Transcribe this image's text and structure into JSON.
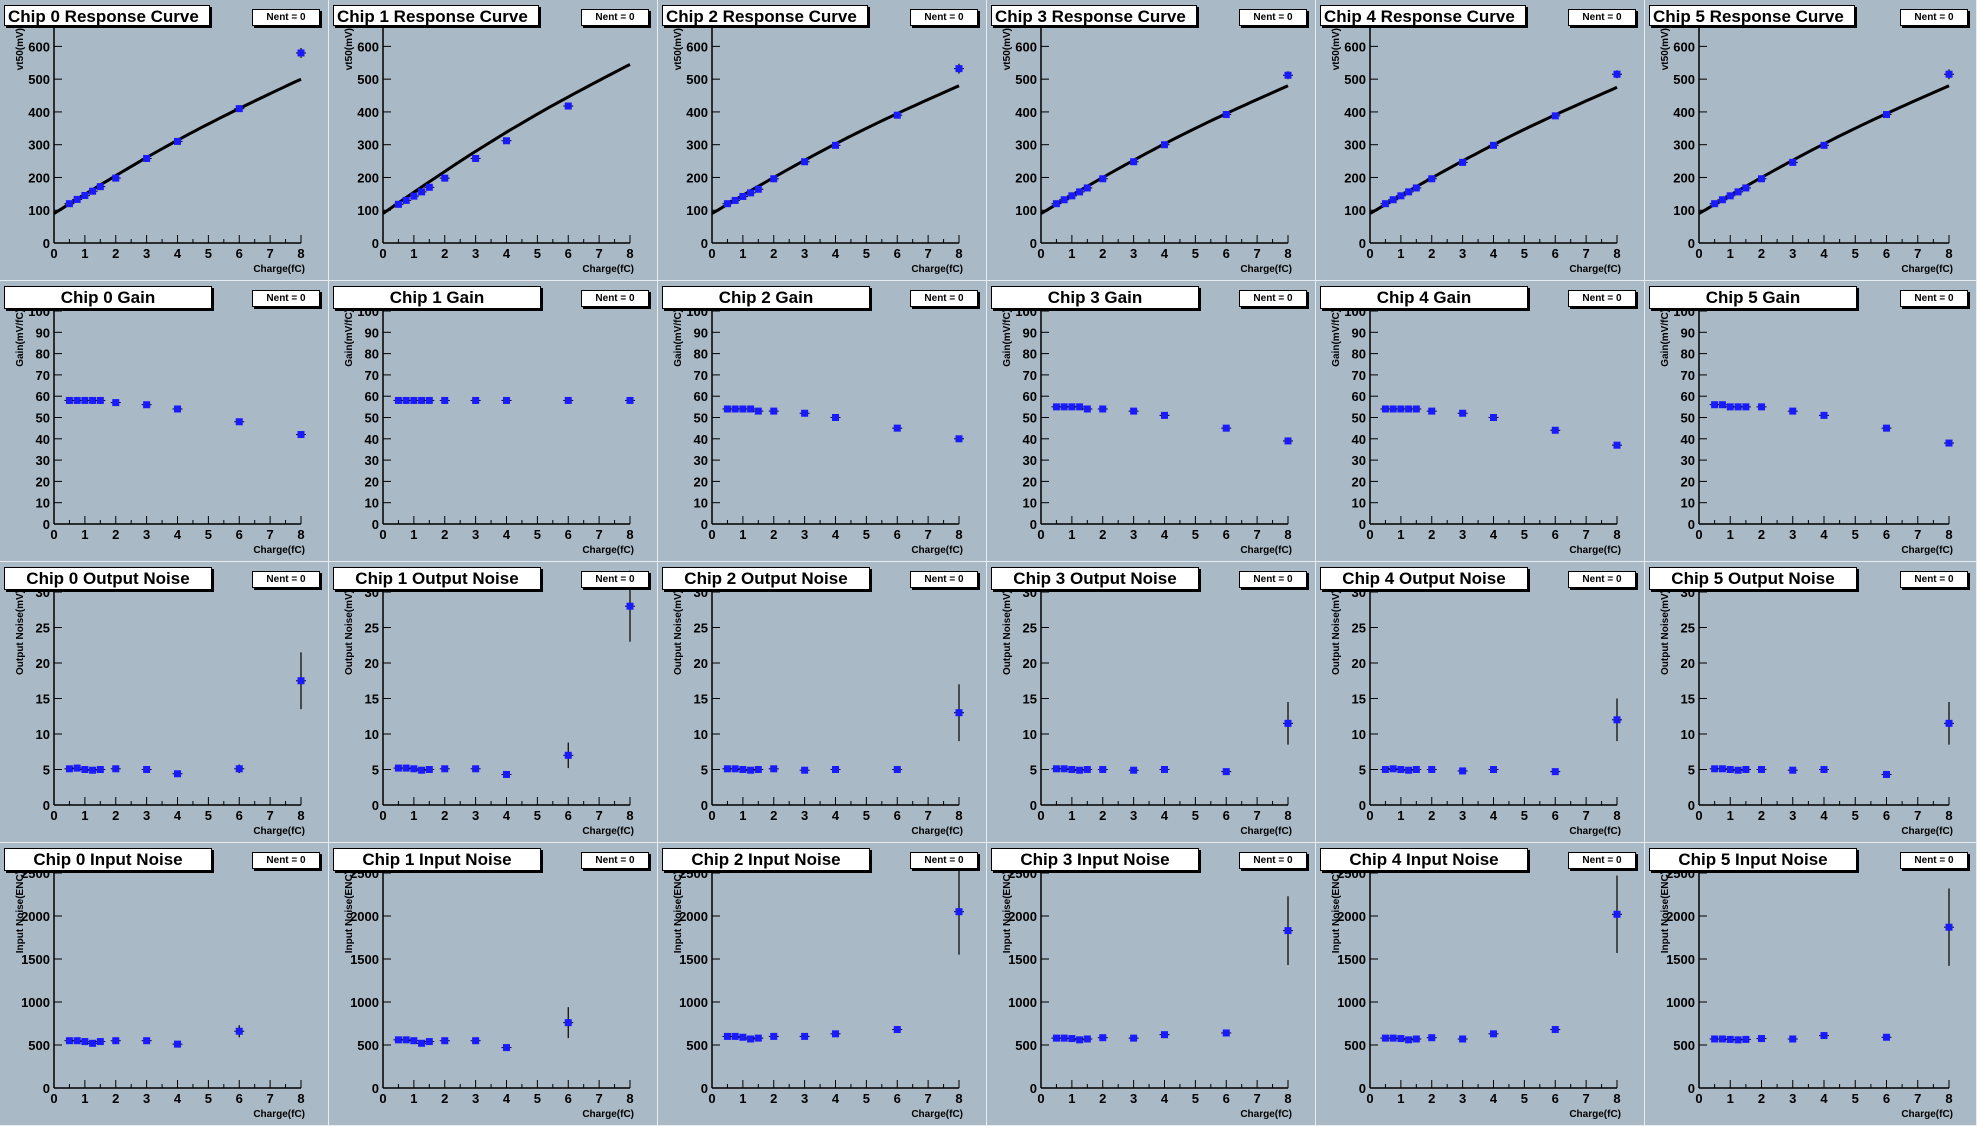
{
  "stat_label": "Nent = 0",
  "rows": [
    {
      "key": "response",
      "title_suffix": "Response Curve",
      "ylabel": "vt50(mV)",
      "xlabel": "Charge(fC)",
      "yticks": [
        "0",
        "100",
        "200",
        "300",
        "400",
        "500",
        "600"
      ]
    },
    {
      "key": "gain",
      "title_suffix": "Gain",
      "ylabel": "Gain(mV/fC)",
      "xlabel": "Charge(fC)",
      "yticks": [
        "0",
        "10",
        "20",
        "30",
        "40",
        "50",
        "60",
        "70",
        "80",
        "90",
        "100"
      ]
    },
    {
      "key": "output_noise",
      "title_suffix": "Output Noise",
      "ylabel": "Output Noise(mV)",
      "xlabel": "Charge(fC)",
      "yticks": [
        "0",
        "5",
        "10",
        "15",
        "20",
        "25",
        "30"
      ]
    },
    {
      "key": "input_noise",
      "title_suffix": "Input Noise",
      "ylabel": "Input Noise(ENC)",
      "xlabel": "Charge(fC)",
      "yticks": [
        "0",
        "500",
        "1000",
        "1500",
        "2000",
        "2500"
      ]
    }
  ],
  "xticks": [
    "0",
    "1",
    "2",
    "3",
    "4",
    "5",
    "6",
    "7",
    "8"
  ],
  "colors": {
    "marker": "#1a1aff",
    "fit": "#000000",
    "pad_bg": "#a9b9c5"
  },
  "chart_data": [
    {
      "type": "scatter",
      "chip": 0,
      "title": "Chip 0 Response Curve",
      "xlabel": "Charge(fC)",
      "ylabel": "vt50(mV)",
      "xlim": [
        0,
        8
      ],
      "ylim": [
        0,
        650
      ],
      "x": [
        0.5,
        0.75,
        1.0,
        1.25,
        1.5,
        2,
        3,
        4,
        6,
        8
      ],
      "y": [
        120,
        133,
        145,
        158,
        172,
        198,
        258,
        310,
        410,
        580
      ],
      "yerr": [
        0,
        0,
        0,
        0,
        0,
        0,
        0,
        0,
        0,
        15
      ],
      "fit": {
        "y0": 90,
        "y8": 500
      }
    },
    {
      "type": "scatter",
      "chip": 1,
      "title": "Chip 1 Response Curve",
      "xlabel": "Charge(fC)",
      "ylabel": "vt50(mV)",
      "xlim": [
        0,
        8
      ],
      "ylim": [
        0,
        650
      ],
      "x": [
        0.5,
        0.75,
        1.0,
        1.25,
        1.5,
        2,
        3,
        4,
        6,
        8
      ],
      "y": [
        118,
        130,
        143,
        156,
        170,
        198,
        258,
        312,
        418,
        0
      ],
      "yerr": [
        0,
        0,
        0,
        0,
        0,
        0,
        0,
        0,
        0,
        0
      ],
      "fit": {
        "y0": 90,
        "y8": 545
      }
    },
    {
      "type": "scatter",
      "chip": 2,
      "title": "Chip 2 Response Curve",
      "xlabel": "Charge(fC)",
      "ylabel": "vt50(mV)",
      "xlim": [
        0,
        8
      ],
      "ylim": [
        0,
        650
      ],
      "x": [
        0.5,
        0.75,
        1.0,
        1.25,
        1.5,
        2,
        3,
        4,
        6,
        8
      ],
      "y": [
        120,
        130,
        142,
        153,
        164,
        196,
        248,
        298,
        390,
        532
      ],
      "yerr": [
        0,
        0,
        0,
        0,
        0,
        0,
        0,
        0,
        0,
        15
      ],
      "fit": {
        "y0": 90,
        "y8": 480
      }
    },
    {
      "type": "scatter",
      "chip": 3,
      "title": "Chip 3 Response Curve",
      "xlabel": "Charge(fC)",
      "ylabel": "vt50(mV)",
      "xlim": [
        0,
        8
      ],
      "ylim": [
        0,
        650
      ],
      "x": [
        0.5,
        0.75,
        1.0,
        1.25,
        1.5,
        2,
        3,
        4,
        6,
        8
      ],
      "y": [
        120,
        132,
        144,
        156,
        168,
        196,
        248,
        300,
        392,
        512
      ],
      "yerr": [
        0,
        0,
        0,
        0,
        0,
        0,
        0,
        0,
        0,
        12
      ],
      "fit": {
        "y0": 90,
        "y8": 480
      }
    },
    {
      "type": "scatter",
      "chip": 4,
      "title": "Chip 4 Response Curve",
      "xlabel": "Charge(fC)",
      "ylabel": "vt50(mV)",
      "xlim": [
        0,
        8
      ],
      "ylim": [
        0,
        650
      ],
      "x": [
        0.5,
        0.75,
        1.0,
        1.25,
        1.5,
        2,
        3,
        4,
        6,
        8
      ],
      "y": [
        120,
        132,
        144,
        156,
        168,
        196,
        246,
        298,
        388,
        515
      ],
      "yerr": [
        0,
        0,
        0,
        0,
        0,
        0,
        0,
        0,
        0,
        12
      ],
      "fit": {
        "y0": 90,
        "y8": 475
      }
    },
    {
      "type": "scatter",
      "chip": 5,
      "title": "Chip 5 Response Curve",
      "xlabel": "Charge(fC)",
      "ylabel": "vt50(mV)",
      "xlim": [
        0,
        8
      ],
      "ylim": [
        0,
        650
      ],
      "x": [
        0.5,
        0.75,
        1.0,
        1.25,
        1.5,
        2,
        3,
        4,
        6,
        8
      ],
      "y": [
        120,
        132,
        144,
        156,
        168,
        196,
        246,
        298,
        392,
        515
      ],
      "yerr": [
        0,
        0,
        0,
        0,
        0,
        0,
        0,
        0,
        0,
        15
      ],
      "fit": {
        "y0": 90,
        "y8": 480
      }
    },
    {
      "type": "scatter",
      "chip": 0,
      "title": "Chip 0 Gain",
      "xlabel": "Charge(fC)",
      "ylabel": "Gain(mV/fC)",
      "xlim": [
        0,
        8
      ],
      "ylim": [
        0,
        100
      ],
      "x": [
        0.5,
        0.75,
        1.0,
        1.25,
        1.5,
        2,
        3,
        4,
        6,
        8
      ],
      "y": [
        58,
        58,
        58,
        58,
        58,
        57,
        56,
        54,
        48,
        42
      ],
      "yerr": [
        0,
        0,
        0,
        0,
        0,
        0,
        0,
        0,
        0,
        0
      ]
    },
    {
      "type": "scatter",
      "chip": 1,
      "title": "Chip 1 Gain",
      "xlabel": "Charge(fC)",
      "ylabel": "Gain(mV/fC)",
      "xlim": [
        0,
        8
      ],
      "ylim": [
        0,
        100
      ],
      "x": [
        0.5,
        0.75,
        1.0,
        1.25,
        1.5,
        2,
        3,
        4,
        6,
        8
      ],
      "y": [
        58,
        58,
        58,
        58,
        58,
        58,
        58,
        58,
        58,
        58
      ],
      "yerr": [
        0,
        0,
        0,
        0,
        0,
        0,
        0,
        0,
        0,
        0
      ]
    },
    {
      "type": "scatter",
      "chip": 2,
      "title": "Chip 2 Gain",
      "xlabel": "Charge(fC)",
      "ylabel": "Gain(mV/fC)",
      "xlim": [
        0,
        8
      ],
      "ylim": [
        0,
        100
      ],
      "x": [
        0.5,
        0.75,
        1.0,
        1.25,
        1.5,
        2,
        3,
        4,
        6,
        8
      ],
      "y": [
        54,
        54,
        54,
        54,
        53,
        53,
        52,
        50,
        45,
        40
      ],
      "yerr": [
        0,
        0,
        0,
        0,
        0,
        0,
        0,
        0,
        0,
        0
      ]
    },
    {
      "type": "scatter",
      "chip": 3,
      "title": "Chip 3 Gain",
      "xlabel": "Charge(fC)",
      "ylabel": "Gain(mV/fC)",
      "xlim": [
        0,
        8
      ],
      "ylim": [
        0,
        100
      ],
      "x": [
        0.5,
        0.75,
        1.0,
        1.25,
        1.5,
        2,
        3,
        4,
        6,
        8
      ],
      "y": [
        55,
        55,
        55,
        55,
        54,
        54,
        53,
        51,
        45,
        39
      ],
      "yerr": [
        0,
        0,
        0,
        0,
        0,
        0,
        0,
        0,
        0,
        0
      ]
    },
    {
      "type": "scatter",
      "chip": 4,
      "title": "Chip 4 Gain",
      "xlabel": "Charge(fC)",
      "ylabel": "Gain(mV/fC)",
      "xlim": [
        0,
        8
      ],
      "ylim": [
        0,
        100
      ],
      "x": [
        0.5,
        0.75,
        1.0,
        1.25,
        1.5,
        2,
        3,
        4,
        6,
        8
      ],
      "y": [
        54,
        54,
        54,
        54,
        54,
        53,
        52,
        50,
        44,
        37
      ],
      "yerr": [
        0,
        0,
        0,
        0,
        0,
        0,
        0,
        0,
        0,
        0
      ]
    },
    {
      "type": "scatter",
      "chip": 5,
      "title": "Chip 5 Gain",
      "xlabel": "Charge(fC)",
      "ylabel": "Gain(mV/fC)",
      "xlim": [
        0,
        8
      ],
      "ylim": [
        0,
        100
      ],
      "x": [
        0.5,
        0.75,
        1.0,
        1.25,
        1.5,
        2,
        3,
        4,
        6,
        8
      ],
      "y": [
        56,
        56,
        55,
        55,
        55,
        55,
        53,
        51,
        45,
        38
      ],
      "yerr": [
        0,
        0,
        0,
        0,
        0,
        0,
        0,
        0,
        0,
        0
      ]
    },
    {
      "type": "scatter",
      "chip": 0,
      "title": "Chip 0 Output Noise",
      "xlabel": "Charge(fC)",
      "ylabel": "Output Noise(mV)",
      "xlim": [
        0,
        8
      ],
      "ylim": [
        0,
        30
      ],
      "x": [
        0.5,
        0.75,
        1.0,
        1.25,
        1.5,
        2,
        3,
        4,
        6,
        8
      ],
      "y": [
        5.1,
        5.2,
        5.0,
        4.9,
        5.0,
        5.1,
        5.0,
        4.4,
        5.1,
        17.5
      ],
      "yerr": [
        0.3,
        0.3,
        0.3,
        0.3,
        0.3,
        0.3,
        0.3,
        0.3,
        0.6,
        4
      ]
    },
    {
      "type": "scatter",
      "chip": 1,
      "title": "Chip 1 Output Noise",
      "xlabel": "Charge(fC)",
      "ylabel": "Output Noise(mV)",
      "xlim": [
        0,
        8
      ],
      "ylim": [
        0,
        30
      ],
      "x": [
        0.5,
        0.75,
        1.0,
        1.25,
        1.5,
        2,
        3,
        4,
        6,
        8
      ],
      "y": [
        5.2,
        5.2,
        5.1,
        4.9,
        5.0,
        5.1,
        5.1,
        4.3,
        7.0,
        28
      ],
      "yerr": [
        0.3,
        0.3,
        0.3,
        0.3,
        0.3,
        0.3,
        0.3,
        0.3,
        1.8,
        5
      ]
    },
    {
      "type": "scatter",
      "chip": 2,
      "title": "Chip 2 Output Noise",
      "xlabel": "Charge(fC)",
      "ylabel": "Output Noise(mV)",
      "xlim": [
        0,
        8
      ],
      "ylim": [
        0,
        30
      ],
      "x": [
        0.5,
        0.75,
        1.0,
        1.25,
        1.5,
        2,
        3,
        4,
        6,
        8
      ],
      "y": [
        5.1,
        5.1,
        5.0,
        4.9,
        5.0,
        5.1,
        4.9,
        5.0,
        5.0,
        13
      ],
      "yerr": [
        0.3,
        0.3,
        0.3,
        0.3,
        0.3,
        0.3,
        0.3,
        0.3,
        0.3,
        4
      ]
    },
    {
      "type": "scatter",
      "chip": 3,
      "title": "Chip 3 Output Noise",
      "xlabel": "Charge(fC)",
      "ylabel": "Output Noise(mV)",
      "xlim": [
        0,
        8
      ],
      "ylim": [
        0,
        30
      ],
      "x": [
        0.5,
        0.75,
        1.0,
        1.25,
        1.5,
        2,
        3,
        4,
        6,
        8
      ],
      "y": [
        5.1,
        5.1,
        5.0,
        4.9,
        5.0,
        5.0,
        4.9,
        5.0,
        4.7,
        11.5
      ],
      "yerr": [
        0.3,
        0.3,
        0.3,
        0.3,
        0.3,
        0.3,
        0.3,
        0.3,
        0.3,
        3
      ]
    },
    {
      "type": "scatter",
      "chip": 4,
      "title": "Chip 4 Output Noise",
      "xlabel": "Charge(fC)",
      "ylabel": "Output Noise(mV)",
      "xlim": [
        0,
        8
      ],
      "ylim": [
        0,
        30
      ],
      "x": [
        0.5,
        0.75,
        1.0,
        1.25,
        1.5,
        2,
        3,
        4,
        6,
        8
      ],
      "y": [
        5.0,
        5.1,
        5.0,
        4.9,
        5.0,
        5.0,
        4.8,
        5.0,
        4.7,
        12
      ],
      "yerr": [
        0.3,
        0.3,
        0.3,
        0.3,
        0.3,
        0.3,
        0.3,
        0.3,
        0.3,
        3
      ]
    },
    {
      "type": "scatter",
      "chip": 5,
      "title": "Chip 5 Output Noise",
      "xlabel": "Charge(fC)",
      "ylabel": "Output Noise(mV)",
      "xlim": [
        0,
        8
      ],
      "ylim": [
        0,
        30
      ],
      "x": [
        0.5,
        0.75,
        1.0,
        1.25,
        1.5,
        2,
        3,
        4,
        6,
        8
      ],
      "y": [
        5.1,
        5.1,
        5.0,
        4.9,
        5.0,
        5.0,
        4.9,
        5.0,
        4.3,
        11.5
      ],
      "yerr": [
        0.3,
        0.3,
        0.3,
        0.3,
        0.3,
        0.3,
        0.3,
        0.3,
        0.3,
        3
      ]
    },
    {
      "type": "scatter",
      "chip": 0,
      "title": "Chip 0 Input Noise",
      "xlabel": "Charge(fC)",
      "ylabel": "Input Noise(ENC)",
      "xlim": [
        0,
        8
      ],
      "ylim": [
        0,
        2500
      ],
      "x": [
        0.5,
        0.75,
        1.0,
        1.25,
        1.5,
        2,
        3,
        4,
        6,
        8
      ],
      "y": [
        550,
        550,
        540,
        520,
        540,
        550,
        550,
        510,
        660,
        0
      ],
      "yerr": [
        25,
        25,
        25,
        25,
        25,
        25,
        25,
        25,
        70,
        0
      ]
    },
    {
      "type": "scatter",
      "chip": 1,
      "title": "Chip 1 Input Noise",
      "xlabel": "Charge(fC)",
      "ylabel": "Input Noise(ENC)",
      "xlim": [
        0,
        8
      ],
      "ylim": [
        0,
        2500
      ],
      "x": [
        0.5,
        0.75,
        1.0,
        1.25,
        1.5,
        2,
        3,
        4,
        6,
        8
      ],
      "y": [
        560,
        560,
        550,
        520,
        540,
        550,
        550,
        470,
        760,
        0
      ],
      "yerr": [
        25,
        25,
        25,
        25,
        25,
        25,
        25,
        25,
        180,
        0
      ]
    },
    {
      "type": "scatter",
      "chip": 2,
      "title": "Chip 2 Input Noise",
      "xlabel": "Charge(fC)",
      "ylabel": "Input Noise(ENC)",
      "xlim": [
        0,
        8
      ],
      "ylim": [
        0,
        2500
      ],
      "x": [
        0.5,
        0.75,
        1.0,
        1.25,
        1.5,
        2,
        3,
        4,
        6,
        8
      ],
      "y": [
        600,
        600,
        590,
        570,
        580,
        600,
        600,
        630,
        680,
        2050
      ],
      "yerr": [
        25,
        25,
        25,
        25,
        25,
        25,
        25,
        25,
        40,
        500
      ]
    },
    {
      "type": "scatter",
      "chip": 3,
      "title": "Chip 3 Input Noise",
      "xlabel": "Charge(fC)",
      "ylabel": "Input Noise(ENC)",
      "xlim": [
        0,
        8
      ],
      "ylim": [
        0,
        2500
      ],
      "x": [
        0.5,
        0.75,
        1.0,
        1.25,
        1.5,
        2,
        3,
        4,
        6,
        8
      ],
      "y": [
        580,
        580,
        575,
        560,
        570,
        585,
        580,
        620,
        640,
        1830
      ],
      "yerr": [
        25,
        25,
        25,
        25,
        25,
        25,
        25,
        25,
        30,
        400
      ]
    },
    {
      "type": "scatter",
      "chip": 4,
      "title": "Chip 4 Input Noise",
      "xlabel": "Charge(fC)",
      "ylabel": "Input Noise(ENC)",
      "xlim": [
        0,
        8
      ],
      "ylim": [
        0,
        2500
      ],
      "x": [
        0.5,
        0.75,
        1.0,
        1.25,
        1.5,
        2,
        3,
        4,
        6,
        8
      ],
      "y": [
        580,
        580,
        575,
        560,
        570,
        585,
        570,
        630,
        680,
        2020
      ],
      "yerr": [
        25,
        25,
        25,
        25,
        25,
        25,
        25,
        25,
        30,
        450
      ]
    },
    {
      "type": "scatter",
      "chip": 5,
      "title": "Chip 5 Input Noise",
      "xlabel": "Charge(fC)",
      "ylabel": "Input Noise(ENC)",
      "xlim": [
        0,
        8
      ],
      "ylim": [
        0,
        2500
      ],
      "x": [
        0.5,
        0.75,
        1.0,
        1.25,
        1.5,
        2,
        3,
        4,
        6,
        8
      ],
      "y": [
        570,
        570,
        565,
        560,
        565,
        575,
        570,
        610,
        590,
        1870
      ],
      "yerr": [
        25,
        25,
        25,
        25,
        25,
        25,
        25,
        25,
        30,
        450
      ]
    }
  ]
}
